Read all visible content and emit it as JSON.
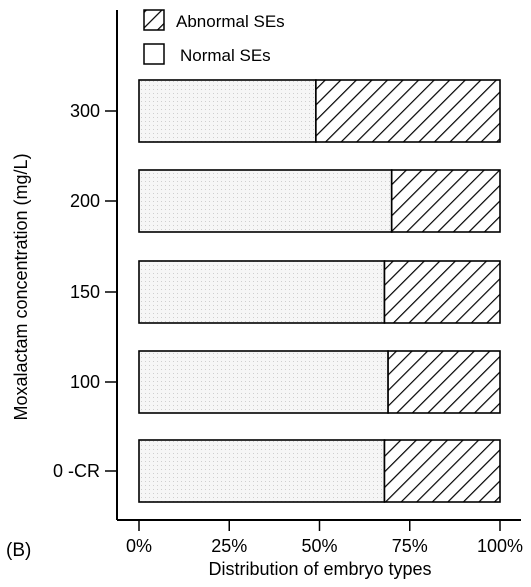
{
  "panel_label": "(B)",
  "chart_data": {
    "type": "bar",
    "orientation": "horizontal",
    "stacked": true,
    "title": "",
    "xlabel": "Distribution of embryo types",
    "ylabel": "Moxalactam concentration (mg/L)",
    "xlim": [
      0,
      100
    ],
    "x_ticks": [
      "0%",
      "25%",
      "50%",
      "75%",
      "100%"
    ],
    "categories": [
      "300",
      "200",
      "150",
      "100",
      "0 -CR"
    ],
    "series": [
      {
        "name": "Normal SEs",
        "values": [
          49,
          70,
          68,
          69,
          68
        ],
        "color": "#f4f4f4",
        "pattern": "light-stipple"
      },
      {
        "name": "Abnormal SEs",
        "values": [
          51,
          30,
          32,
          31,
          32
        ],
        "color": "#ffffff",
        "pattern": "diagonal-hatch"
      }
    ],
    "legend": [
      "Abnormal SEs",
      "Normal SEs"
    ],
    "legend_position": "top",
    "grid": false
  }
}
